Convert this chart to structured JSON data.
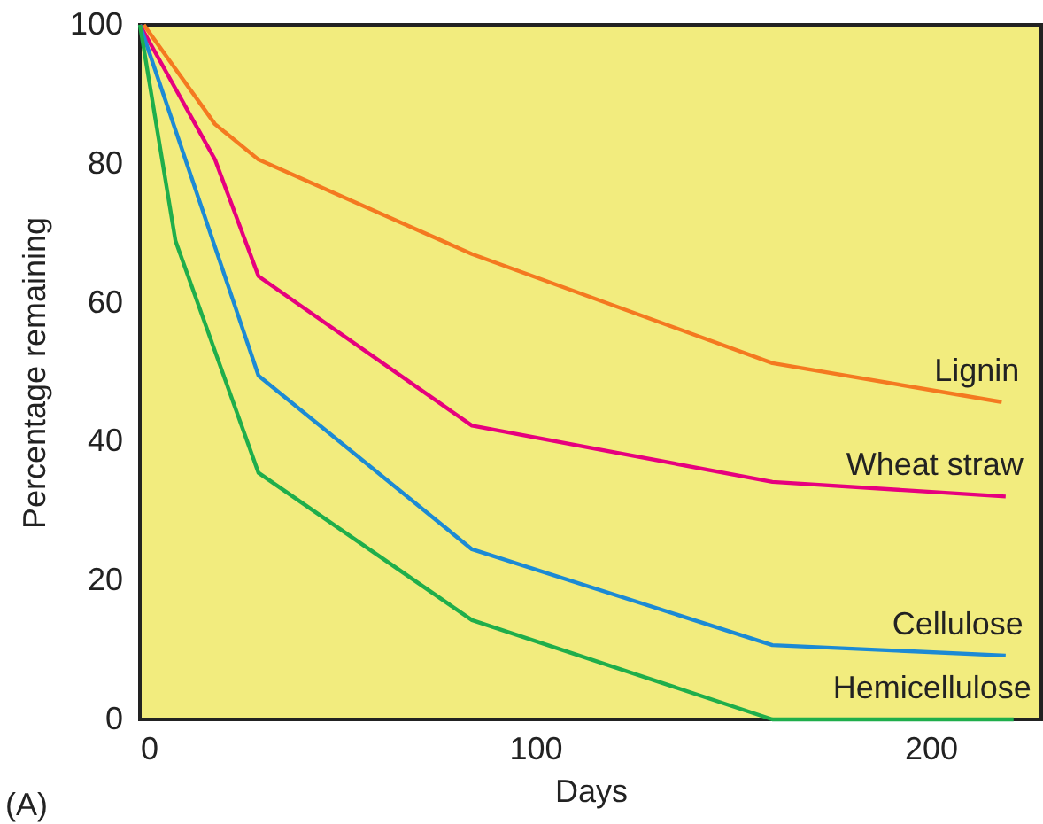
{
  "chart_data": {
    "type": "line",
    "xlabel": "Days",
    "ylabel": "Percentage remaining",
    "xlim": [
      0,
      228
    ],
    "ylim": [
      0,
      100
    ],
    "xticks": [
      0,
      100,
      200
    ],
    "yticks": [
      0,
      20,
      40,
      60,
      80,
      100
    ],
    "grid": false,
    "marker": "none",
    "line_style": "solid",
    "annotations": [
      "(A)"
    ],
    "series": [
      {
        "name": "Lignin",
        "color": "#f47920",
        "x": [
          1,
          19,
          30,
          84,
          160,
          218
        ],
        "values": [
          100,
          85.7,
          80.6,
          67,
          51.3,
          45.7
        ]
      },
      {
        "name": "Wheat straw",
        "color": "#e6007e",
        "x": [
          0,
          19,
          30,
          84,
          160,
          219
        ],
        "values": [
          100,
          80.6,
          63.8,
          42.3,
          34.2,
          32.1
        ]
      },
      {
        "name": "Cellulose",
        "color": "#1c8ad4",
        "x": [
          0,
          30,
          84,
          160,
          219
        ],
        "values": [
          100,
          49.5,
          24.5,
          10.7,
          9.2
        ]
      },
      {
        "name": "Hemicellulose",
        "color": "#1fae4b",
        "x": [
          0,
          9,
          30,
          84,
          160,
          221
        ],
        "values": [
          100,
          68.9,
          35.5,
          14.3,
          0,
          0
        ]
      }
    ]
  }
}
